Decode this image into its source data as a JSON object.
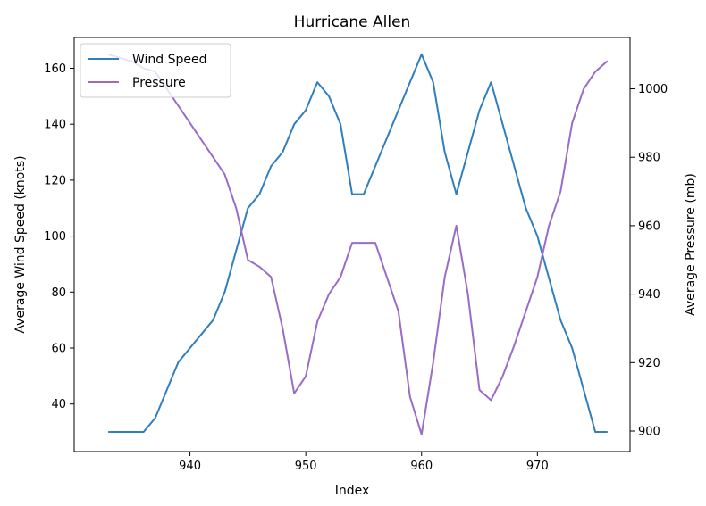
{
  "chart_data": {
    "type": "line",
    "title": "Hurricane Allen",
    "xlabel": "Index",
    "ylabel_left": "Average Wind Speed (knots)",
    "ylabel_right": "Average Pressure (mb)",
    "xlim": [
      930,
      978
    ],
    "ylim_left": [
      23,
      171
    ],
    "ylim_right": [
      894,
      1015
    ],
    "x_ticks": [
      940,
      950,
      960,
      970
    ],
    "y_ticks_left": [
      40,
      60,
      80,
      100,
      120,
      140,
      160
    ],
    "y_ticks_right": [
      900,
      920,
      940,
      960,
      980,
      1000
    ],
    "legend": {
      "position": "top-left"
    },
    "colors": {
      "wind": "#2f7fbf",
      "pressure": "#9b6bc8"
    },
    "x": [
      933,
      934,
      935,
      936,
      937,
      938,
      939,
      940,
      941,
      942,
      943,
      944,
      945,
      946,
      947,
      948,
      949,
      950,
      951,
      952,
      953,
      954,
      955,
      956,
      957,
      958,
      959,
      960,
      961,
      962,
      963,
      964,
      965,
      966,
      967,
      968,
      969,
      970,
      971,
      972,
      973,
      974,
      975,
      976
    ],
    "series": [
      {
        "name": "Wind Speed",
        "axis": "left",
        "values": [
          30,
          30,
          30,
          30,
          35,
          45,
          55,
          60,
          65,
          70,
          80,
          95,
          110,
          115,
          125,
          130,
          140,
          145,
          155,
          150,
          140,
          115,
          115,
          125,
          135,
          145,
          155,
          165,
          155,
          130,
          115,
          130,
          145,
          155,
          140,
          125,
          110,
          100,
          85,
          70,
          60,
          45,
          30,
          30
        ]
      },
      {
        "name": "Pressure",
        "axis": "right",
        "values": [
          1010,
          1009,
          1008,
          1006,
          1005,
          1000,
          995,
          990,
          985,
          980,
          975,
          965,
          950,
          948,
          945,
          930,
          911,
          916,
          932,
          940,
          945,
          955,
          955,
          955,
          945,
          935,
          910,
          899,
          920,
          945,
          960,
          940,
          912,
          909,
          916,
          925,
          935,
          945,
          960,
          970,
          990,
          1000,
          1005,
          1008
        ]
      }
    ]
  }
}
